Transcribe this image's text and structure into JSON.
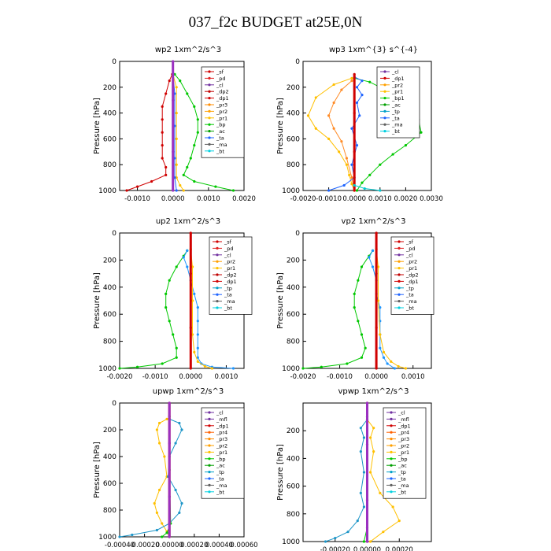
{
  "title": "037_f2c  BUDGET at25E,0N",
  "chart_data": [
    {
      "type": "line",
      "title": "wp2   1xm^2/s^3",
      "ylabel": "Pressure  [hPa]",
      "xlim": [
        -0.0015,
        0.002
      ],
      "ylim": [
        1000,
        0
      ],
      "xticks": [
        "-0.0010",
        "0.0000",
        "0.0010",
        "0.0020"
      ],
      "xtick_values": [
        -0.001,
        0.0,
        0.001,
        0.002
      ],
      "yticks": [
        0,
        200,
        400,
        600,
        800,
        1000
      ],
      "legend": [
        "_sf",
        "_pd",
        "_cl",
        "_dp2",
        "_dp1",
        "_pr3",
        "_pr2",
        "_pr1",
        "_bp",
        "_ac",
        "_ta",
        "_ma",
        "_bt"
      ],
      "series": [
        {
          "color": "#00c800",
          "x": [
            5e-05,
            0.0002,
            0.0004,
            0.0006,
            0.0007,
            0.0007,
            0.0006,
            0.0005,
            0.0004,
            0.0003,
            0.0006,
            0.0012,
            0.0017
          ],
          "y": [
            100,
            150,
            250,
            350,
            450,
            550,
            650,
            750,
            820,
            880,
            930,
            970,
            1000
          ]
        },
        {
          "color": "#d00000",
          "x": [
            -2e-05,
            -0.0001,
            -0.0002,
            -0.0003,
            -0.0003,
            -0.0003,
            -0.0003,
            -0.0003,
            -0.0002,
            -0.0002,
            -0.0006,
            -0.001,
            -0.0013
          ],
          "y": [
            100,
            150,
            250,
            350,
            450,
            550,
            650,
            750,
            820,
            880,
            930,
            970,
            1000
          ]
        },
        {
          "color": "#ffc000",
          "x": [
            0.0,
            0.0001,
            0.0001,
            0.0001,
            0.0001,
            0.0001,
            0.0002,
            0.0003
          ],
          "y": [
            100,
            200,
            400,
            600,
            800,
            900,
            960,
            1000
          ]
        },
        {
          "color": "#1e64ff",
          "x": [
            0.0,
            5e-05,
            5e-05,
            5e-05,
            5e-05,
            0.0001
          ],
          "y": [
            100,
            250,
            500,
            750,
            900,
            1000
          ]
        },
        {
          "color": "#9b30c0",
          "x": [
            0.0,
            0.0,
            0.0,
            0.0
          ],
          "y": [
            0,
            300,
            700,
            1000
          ]
        }
      ]
    },
    {
      "type": "line",
      "title": "wp3   1xm^{3} s^{-4}",
      "ylabel": "Pressure  [hPa]",
      "xlim": [
        -0.002,
        0.003
      ],
      "ylim": [
        1000,
        0
      ],
      "xticks": [
        "-0.0020",
        "-0.0010",
        "0.0000",
        "0.0010",
        "0.0020",
        "0.0030"
      ],
      "xtick_values": [
        -0.002,
        -0.001,
        0.0,
        0.001,
        0.002,
        0.003
      ],
      "yticks": [
        0,
        200,
        400,
        600,
        800,
        1000
      ],
      "legend": [
        "_cl",
        "_dp1",
        "_pr2",
        "_pr1",
        "_bp1",
        "_ac",
        "_tp",
        "_ta",
        "_ma",
        "_bt"
      ],
      "series": [
        {
          "color": "#00c800",
          "x": [
            0.0,
            0.0006,
            0.0012,
            0.0016,
            0.002,
            0.0025,
            0.0026,
            0.002,
            0.0015,
            0.001,
            0.0006,
            0.0003,
            0.0001
          ],
          "y": [
            130,
            160,
            220,
            300,
            380,
            450,
            550,
            650,
            720,
            800,
            880,
            940,
            1000
          ]
        },
        {
          "color": "#ffc000",
          "x": [
            -0.0001,
            -0.0008,
            -0.0015,
            -0.0018,
            -0.0015,
            -0.001,
            -0.0006,
            -0.0003,
            -0.0002,
            -0.0001,
            0.0
          ],
          "y": [
            130,
            180,
            280,
            420,
            520,
            600,
            700,
            800,
            880,
            950,
            1000
          ]
        },
        {
          "color": "#ff8c28",
          "x": [
            -0.0001,
            -0.0005,
            -0.0008,
            -0.001,
            -0.0008,
            -0.0005,
            -0.0003,
            -0.0001,
            0.0
          ],
          "y": [
            150,
            220,
            320,
            420,
            520,
            620,
            750,
            900,
            1000
          ]
        },
        {
          "color": "#1e64ff",
          "x": [
            0.0,
            0.0003,
            0.0001,
            0.0003,
            0.0001,
            0.0002,
            -0.0001,
            0.0001,
            -0.0001,
            0.0,
            -0.0004,
            -0.001
          ],
          "y": [
            120,
            150,
            200,
            260,
            320,
            420,
            520,
            650,
            800,
            900,
            960,
            1000
          ]
        },
        {
          "color": "#d00000",
          "x": [
            0.0,
            0.0,
            0.0,
            0.0
          ],
          "y": [
            100,
            400,
            700,
            1000
          ]
        },
        {
          "color": "#00c8d0",
          "x": [
            0.0,
            0.0004,
            0.001
          ],
          "y": [
            960,
            985,
            1000
          ]
        }
      ]
    },
    {
      "type": "line",
      "title": "up2   1xm^2/s^3",
      "ylabel": "Pressure  [hPa]",
      "xlim": [
        -0.002,
        0.0015
      ],
      "ylim": [
        1000,
        0
      ],
      "xticks": [
        "-0.0020",
        "-0.0010",
        "0.0000",
        "0.0010"
      ],
      "xtick_values": [
        -0.002,
        -0.001,
        0.0,
        0.001
      ],
      "yticks": [
        0,
        200,
        400,
        600,
        800,
        1000
      ],
      "legend": [
        "_sf",
        "_pd",
        "_cl",
        "_pr2",
        "_pr1",
        "_dp2",
        "_dp1",
        "_tp",
        "_ta",
        "_ma",
        "_bt"
      ],
      "series": [
        {
          "color": "#00c800",
          "x": [
            -0.0001,
            -0.0002,
            -0.0004,
            -0.0006,
            -0.0007,
            -0.0007,
            -0.0006,
            -0.0005,
            -0.0004,
            -0.0004,
            -0.0008,
            -0.0015,
            -0.002
          ],
          "y": [
            130,
            170,
            250,
            350,
            450,
            550,
            650,
            750,
            850,
            920,
            965,
            990,
            1000
          ]
        },
        {
          "color": "#1e96ff",
          "x": [
            -0.0001,
            -0.0002,
            -0.0001,
            0.0,
            0.0001,
            0.0002,
            0.0002,
            0.0002,
            0.0002,
            0.0002,
            0.0003,
            0.0006,
            0.0012
          ],
          "y": [
            130,
            180,
            250,
            350,
            450,
            550,
            650,
            750,
            850,
            920,
            965,
            990,
            1000
          ]
        },
        {
          "color": "#ffc000",
          "x": [
            0.0,
            5e-05,
            5e-05,
            5e-05,
            0.0001,
            0.0002,
            0.0004,
            0.0006
          ],
          "y": [
            120,
            250,
            500,
            750,
            880,
            950,
            985,
            1000
          ]
        },
        {
          "color": "#d00000",
          "x": [
            0.0,
            0.0,
            0.0,
            0.0
          ],
          "y": [
            0,
            300,
            700,
            1000
          ]
        }
      ]
    },
    {
      "type": "line",
      "title": "vp2   1xm^2/s^3",
      "ylabel": "Pressure  [hPa]",
      "xlim": [
        -0.002,
        0.0015
      ],
      "ylim": [
        1000,
        0
      ],
      "xticks": [
        "-0.0020",
        "-0.0010",
        "0.0000",
        "0.0010"
      ],
      "xtick_values": [
        -0.002,
        -0.001,
        0.0,
        0.001
      ],
      "yticks": [
        0,
        200,
        400,
        600,
        800,
        1000
      ],
      "legend": [
        "_sf",
        "_pd",
        "_cl",
        "_pr2",
        "_pr1",
        "_dp2",
        "_dp1",
        "_tp",
        "_ta",
        "_ma",
        "_bt"
      ],
      "series": [
        {
          "color": "#00c800",
          "x": [
            -0.0001,
            -0.0002,
            -0.0004,
            -0.0005,
            -0.0006,
            -0.0006,
            -0.0005,
            -0.0004,
            -0.0003,
            -0.0004,
            -0.0008,
            -0.0015,
            -0.002
          ],
          "y": [
            130,
            170,
            250,
            350,
            450,
            550,
            650,
            750,
            850,
            920,
            965,
            990,
            1000
          ]
        },
        {
          "color": "#1e96ff",
          "x": [
            -0.0001,
            -0.0002,
            -0.0001,
            0.0,
            0.0,
            0.0001,
            0.0001,
            0.0001,
            0.0001,
            0.0002,
            0.0003,
            0.0005
          ],
          "y": [
            130,
            180,
            250,
            350,
            450,
            550,
            650,
            750,
            850,
            920,
            965,
            1000
          ]
        },
        {
          "color": "#ffc000",
          "x": [
            0.0,
            5e-05,
            5e-05,
            0.0001,
            0.0002,
            0.0004,
            0.0006,
            0.0008
          ],
          "y": [
            120,
            250,
            500,
            750,
            880,
            950,
            985,
            1000
          ]
        },
        {
          "color": "#d00000",
          "x": [
            0.0,
            0.0,
            0.0,
            0.0
          ],
          "y": [
            0,
            300,
            700,
            1000
          ]
        }
      ]
    },
    {
      "type": "line",
      "title": "upwp   1xm^2/s^3",
      "ylabel": "Pressure  [hPa]",
      "xlim": [
        -0.0004,
        0.0006
      ],
      "ylim": [
        1000,
        0
      ],
      "xticks": [
        "-0.00040",
        "-0.00020",
        "0.00000",
        "0.00020",
        "0.00040",
        "0.00060"
      ],
      "xtick_values": [
        -0.0004,
        -0.0002,
        0.0,
        0.0002,
        0.0004,
        0.0006
      ],
      "yticks": [
        0,
        200,
        400,
        600,
        800,
        1000
      ],
      "legend": [
        "_cl",
        "_mfl",
        "_dp1",
        "_pr4",
        "_pr3",
        "_pr2",
        "_pr1",
        "_bp",
        "_ac",
        "_tp",
        "_ta",
        "_ma",
        "_bt"
      ],
      "series": [
        {
          "color": "#ffc000",
          "x": [
            -2e-05,
            -8e-05,
            -0.0001,
            -8e-05,
            -4e-05,
            -2e-05,
            -8e-05,
            -0.00012,
            -0.0001,
            -6e-05,
            -2e-05,
            0.0
          ],
          "y": [
            120,
            150,
            200,
            300,
            400,
            550,
            650,
            750,
            820,
            900,
            960,
            1000
          ]
        },
        {
          "color": "#1e96c8",
          "x": [
            0.0,
            8e-05,
            0.0001,
            5e-05,
            0.0,
            -1e-05,
            5e-05,
            0.0001,
            8e-05,
            0.0,
            -0.0001,
            -0.0003,
            -0.0004
          ],
          "y": [
            120,
            150,
            200,
            300,
            400,
            550,
            650,
            750,
            820,
            900,
            950,
            985,
            1000
          ]
        },
        {
          "color": "#00c800",
          "x": [
            0.0,
            0.0,
            1e-05,
            -2e-05,
            -6e-05
          ],
          "y": [
            100,
            500,
            900,
            970,
            1000
          ]
        },
        {
          "color": "#d00000",
          "x": [
            0.0,
            0.0,
            0.0,
            0.0
          ],
          "y": [
            0,
            300,
            700,
            1000
          ]
        },
        {
          "color": "#9b30c0",
          "x": [
            0.0,
            0.0,
            0.0,
            0.0
          ],
          "y": [
            0,
            300,
            700,
            1000
          ]
        }
      ]
    },
    {
      "type": "line",
      "title": "vpwp   1xm^2/s^3",
      "ylabel": "Pressure  [hPa]",
      "xlim": [
        -0.0004,
        0.0004
      ],
      "ylim": [
        1000,
        0
      ],
      "xticks": [
        "-0.00020",
        "0.00000",
        "0.00020"
      ],
      "xtick_values": [
        -0.0002,
        0.0,
        0.0002
      ],
      "yticks": [
        200,
        400,
        600,
        800,
        1000
      ],
      "legend": [
        "_cl",
        "_mfl",
        "_dp1",
        "_pr4",
        "_pr3",
        "_pr2",
        "_pr1",
        "_bp",
        "_ac",
        "_tp",
        "_ta",
        "_ma",
        "_bt"
      ],
      "series": [
        {
          "color": "#ffc000",
          "x": [
            0.0,
            4e-05,
            2e-05,
            4e-05,
            2e-05,
            8e-05,
            0.00016,
            0.0002,
            0.0001,
            2e-05
          ],
          "y": [
            120,
            180,
            250,
            350,
            500,
            650,
            750,
            850,
            930,
            1000
          ]
        },
        {
          "color": "#1e96c8",
          "x": [
            0.0,
            -4e-05,
            -2e-05,
            -4e-05,
            -2e-05,
            -4e-05,
            -2e-05,
            -6e-05,
            -0.00012,
            -0.0002,
            -0.00026
          ],
          "y": [
            120,
            180,
            250,
            350,
            500,
            650,
            750,
            850,
            930,
            975,
            1000
          ]
        },
        {
          "color": "#00c800",
          "x": [
            0.0,
            0.0,
            0.0,
            -2e-05
          ],
          "y": [
            100,
            500,
            900,
            1000
          ]
        },
        {
          "color": "#d00000",
          "x": [
            0.0,
            0.0,
            0.0,
            0.0
          ],
          "y": [
            0,
            300,
            700,
            1000
          ]
        },
        {
          "color": "#9b30c0",
          "x": [
            0.0,
            0.0,
            0.0,
            0.0
          ],
          "y": [
            0,
            300,
            700,
            1000
          ]
        }
      ]
    }
  ],
  "legend_colors": {
    "_sf": "#d00000",
    "_pd": "#e02020",
    "_cl": "#7030a0",
    "_mfl": "#7030a0",
    "_dp2": "#c00000",
    "_dp1": "#d00000",
    "_pr4": "#ff6000",
    "_pr3": "#ff8c00",
    "_pr2": "#ffa000",
    "_pr1": "#ffc000",
    "_bp": "#00c800",
    "_bp1": "#00c800",
    "_ac": "#00a000",
    "_tp": "#00a0c8",
    "_ta": "#1e64ff",
    "_ma": "#606060",
    "_bt": "#00d0e0"
  }
}
